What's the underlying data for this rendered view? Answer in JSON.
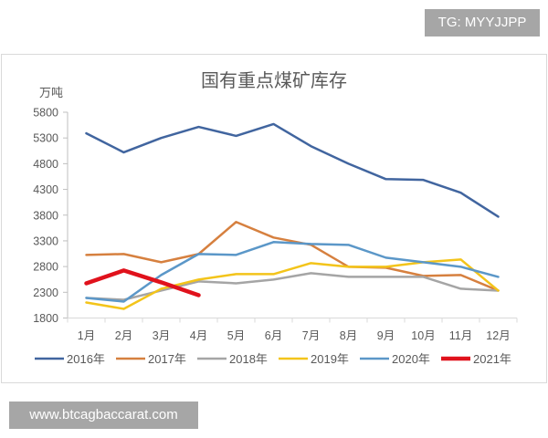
{
  "watermark_top": "TG: MYYJJPP",
  "watermark_bottom": "www.btcagbaccarat.com",
  "chart_data": {
    "type": "line",
    "title": "国有重点煤矿库存",
    "xlabel": "",
    "ylabel": "万吨",
    "ylim": [
      1800,
      5800
    ],
    "yticks": [
      1800,
      2300,
      2800,
      3300,
      3800,
      4300,
      4800,
      5300,
      5800
    ],
    "grid": false,
    "legend_position": "bottom",
    "categories": [
      "1月",
      "2月",
      "3月",
      "4月",
      "5月",
      "6月",
      "7月",
      "8月",
      "9月",
      "10月",
      "11月",
      "12月"
    ],
    "series": [
      {
        "name": "2016年",
        "color": "#41659f",
        "width": 2.5,
        "values": [
          5390,
          5020,
          5300,
          5515,
          5340,
          5570,
          5140,
          4800,
          4500,
          4485,
          4235,
          3770
        ]
      },
      {
        "name": "2017年",
        "color": "#d6803f",
        "width": 2.5,
        "values": [
          3027,
          3044,
          2884,
          3044,
          3667,
          3364,
          3222,
          2796,
          2778,
          2618,
          2636,
          2333
        ]
      },
      {
        "name": "2018年",
        "color": "#a5a5a5",
        "width": 2.5,
        "values": [
          2191,
          2155,
          2333,
          2511,
          2475,
          2547,
          2671,
          2600,
          2600,
          2600,
          2369,
          2333
        ]
      },
      {
        "name": "2019年",
        "color": "#f3c41a",
        "width": 2.5,
        "values": [
          2102,
          1978,
          2369,
          2547,
          2653,
          2653,
          2867,
          2796,
          2796,
          2884,
          2938,
          2333
        ]
      },
      {
        "name": "2020年",
        "color": "#5b97c8",
        "width": 2.5,
        "values": [
          2191,
          2120,
          2636,
          3044,
          3027,
          3276,
          3240,
          3222,
          2973,
          2884,
          2796,
          2600
        ]
      },
      {
        "name": "2021年",
        "color": "#e0121c",
        "width": 4.5,
        "values": [
          2475,
          2724,
          2493,
          2244
        ]
      }
    ]
  }
}
